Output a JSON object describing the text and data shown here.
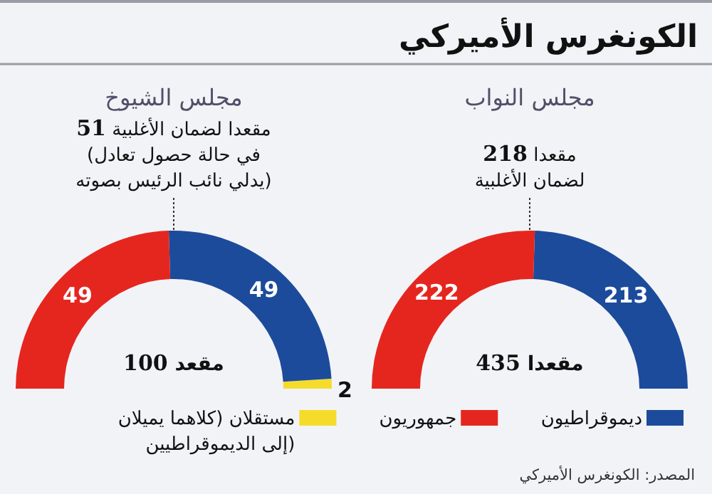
{
  "chart_data": [
    {
      "type": "donut",
      "title": "الكونغرس الأميركي",
      "subtitle": "مجلس النواب",
      "categories": [
        "ديموقراطيون",
        "جمهوريون"
      ],
      "values": [
        213,
        222
      ],
      "colors": [
        "#1c4b9b",
        "#e5261f"
      ],
      "data_labels": true,
      "legend": "bottom",
      "annotations": [
        "218 مقعدا\nلضمان الأغلبية",
        "435 مقعدا",
        "المصدر: الكونغرس الأميركي"
      ]
    },
    {
      "type": "donut",
      "title": "مجلس الشيوخ",
      "categories": [
        "مستقلان (كلاهما يميلان إلى الديموقراطيين)",
        null,
        null
      ],
      "values": [
        2,
        49,
        49
      ],
      "colors": [
        "#f5dc2a",
        "#1c4b9b",
        "#e5261f"
      ],
      "data_labels": true,
      "legend": "bottom",
      "annotations": [
        "51 مقعدا لضمان الأغلبية\n(في حالة حصول تعادل\nيدلي نائب الرئيس بصوته)",
        "100 مقعد"
      ]
    }
  ]
}
